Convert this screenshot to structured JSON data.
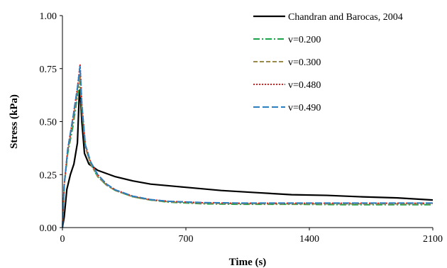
{
  "chart_data": {
    "type": "line",
    "title": "",
    "xlabel": "Time (s)",
    "ylabel": "Stress (kPa)",
    "xlim": [
      0,
      2100
    ],
    "ylim": [
      0,
      1.0
    ],
    "x_ticks": [
      0,
      700,
      1400,
      2100
    ],
    "x_tick_labels": [
      "0",
      "700",
      "1400",
      "2100"
    ],
    "y_ticks": [
      0,
      0.25,
      0.5,
      0.75,
      1.0
    ],
    "y_tick_labels": [
      "0.00",
      "0.25",
      "0.50",
      "0.75",
      "1.00"
    ],
    "grid": false,
    "legend_position": "top-right",
    "series": [
      {
        "name": "Chandran and Barocas, 2004",
        "color": "#000000",
        "dash": "solid",
        "x": [
          0,
          10,
          25,
          45,
          65,
          85,
          95,
          100,
          110,
          125,
          150,
          200,
          300,
          400,
          500,
          700,
          900,
          1100,
          1300,
          1500,
          1700,
          1900,
          2100
        ],
        "y": [
          0.0,
          0.05,
          0.18,
          0.25,
          0.3,
          0.4,
          0.62,
          0.65,
          0.5,
          0.35,
          0.3,
          0.27,
          0.24,
          0.22,
          0.205,
          0.19,
          0.175,
          0.165,
          0.155,
          0.152,
          0.145,
          0.14,
          0.13
        ]
      },
      {
        "name": "v=0.200",
        "color": "#1aa44a",
        "dash": "dashdot",
        "x": [
          0,
          10,
          30,
          60,
          85,
          100,
          110,
          130,
          160,
          200,
          250,
          300,
          400,
          500,
          600,
          800,
          1000,
          1300,
          1600,
          1900,
          2100
        ],
        "y": [
          0.0,
          0.2,
          0.35,
          0.48,
          0.62,
          0.69,
          0.55,
          0.38,
          0.3,
          0.24,
          0.2,
          0.175,
          0.145,
          0.13,
          0.12,
          0.112,
          0.11,
          0.11,
          0.108,
          0.108,
          0.108
        ]
      },
      {
        "name": "v=0.300",
        "color": "#9a8a4a",
        "dash": "dashed",
        "x": [
          0,
          10,
          30,
          60,
          85,
          100,
          110,
          130,
          160,
          200,
          250,
          300,
          400,
          500,
          600,
          800,
          1000,
          1300,
          1600,
          1900,
          2100
        ],
        "y": [
          0.0,
          0.2,
          0.36,
          0.5,
          0.64,
          0.72,
          0.56,
          0.38,
          0.3,
          0.24,
          0.2,
          0.175,
          0.145,
          0.13,
          0.122,
          0.115,
          0.113,
          0.112,
          0.112,
          0.112,
          0.112
        ]
      },
      {
        "name": "v=0.480",
        "color": "#e02020",
        "dash": "dotted",
        "x": [
          0,
          10,
          30,
          60,
          85,
          100,
          110,
          130,
          160,
          200,
          250,
          300,
          400,
          500,
          600,
          800,
          1000,
          1300,
          1600,
          1900,
          2100
        ],
        "y": [
          0.0,
          0.2,
          0.37,
          0.52,
          0.66,
          0.77,
          0.58,
          0.39,
          0.31,
          0.25,
          0.205,
          0.178,
          0.148,
          0.132,
          0.124,
          0.117,
          0.115,
          0.115,
          0.115,
          0.115,
          0.115
        ]
      },
      {
        "name": "v=0.490",
        "color": "#2a7fc0",
        "dash": "longdash",
        "x": [
          0,
          10,
          30,
          60,
          85,
          100,
          110,
          130,
          160,
          200,
          250,
          300,
          400,
          500,
          600,
          800,
          1000,
          1300,
          1600,
          1900,
          2100
        ],
        "y": [
          0.0,
          0.2,
          0.37,
          0.52,
          0.66,
          0.76,
          0.58,
          0.39,
          0.31,
          0.25,
          0.205,
          0.178,
          0.148,
          0.132,
          0.124,
          0.118,
          0.116,
          0.116,
          0.116,
          0.116,
          0.116
        ]
      }
    ]
  }
}
